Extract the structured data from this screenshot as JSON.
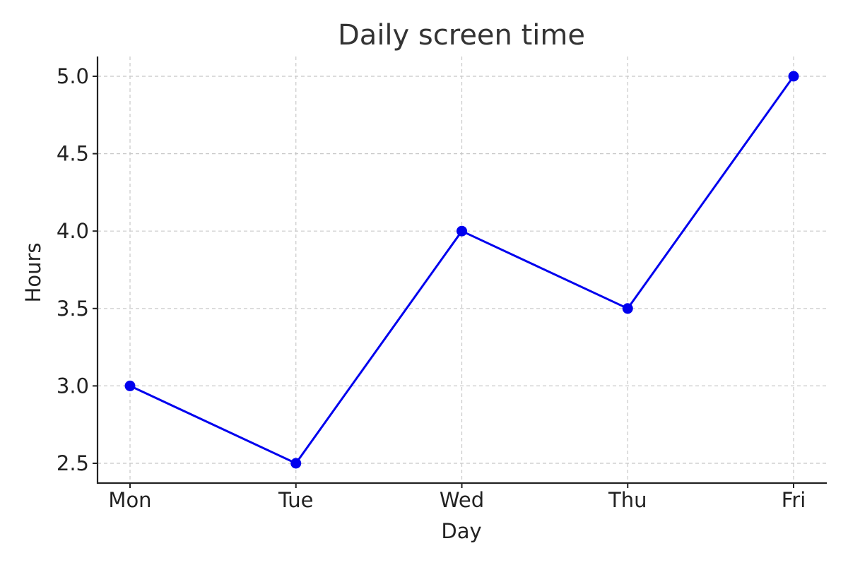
{
  "chart_data": {
    "type": "line",
    "title": "Daily screen time",
    "xlabel": "Day",
    "ylabel": "Hours",
    "categories": [
      "Mon",
      "Tue",
      "Wed",
      "Thu",
      "Fri"
    ],
    "values": [
      3.0,
      2.5,
      4.0,
      3.5,
      5.0
    ],
    "ylim": [
      2.4,
      5.1
    ],
    "yticks": [
      "2.5",
      "3.0",
      "3.5",
      "4.0",
      "4.5",
      "5.0"
    ],
    "grid": true,
    "line_color": "#0000ee",
    "marker": "circle"
  }
}
